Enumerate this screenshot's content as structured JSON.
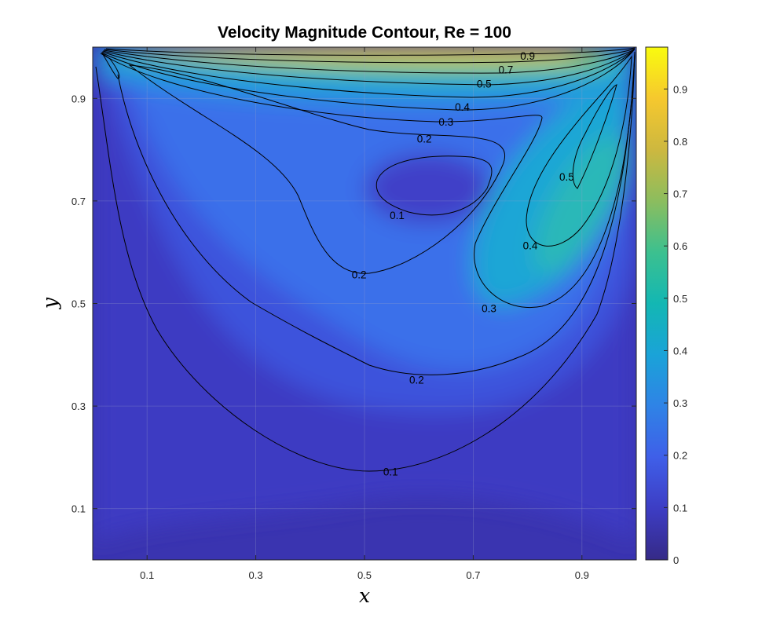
{
  "chart_data": {
    "type": "heatmap",
    "title": "Velocity Magnitude Contour, Re = 100",
    "xlabel": "x",
    "ylabel": "y",
    "xlim": [
      0,
      1
    ],
    "ylim": [
      0,
      1
    ],
    "xticks": [
      "0.1",
      "0.3",
      "0.5",
      "0.7",
      "0.9"
    ],
    "yticks": [
      "0.1",
      "0.3",
      "0.5",
      "0.7",
      "0.9"
    ],
    "grid": true,
    "colormap": "parula",
    "colorbar": {
      "range": [
        0,
        0.98
      ],
      "ticks": [
        "0",
        "0.1",
        "0.2",
        "0.3",
        "0.4",
        "0.5",
        "0.6",
        "0.7",
        "0.8",
        "0.9"
      ]
    },
    "contour_labels": [
      {
        "text": "0.9",
        "x": 0.8,
        "y": 0.982
      },
      {
        "text": "0.7",
        "x": 0.76,
        "y": 0.955
      },
      {
        "text": "0.5",
        "x": 0.72,
        "y": 0.927
      },
      {
        "text": "0.4",
        "x": 0.68,
        "y": 0.882
      },
      {
        "text": "0.3",
        "x": 0.65,
        "y": 0.853
      },
      {
        "text": "0.2",
        "x": 0.61,
        "y": 0.82
      },
      {
        "text": "0.1",
        "x": 0.56,
        "y": 0.671
      },
      {
        "text": "0.2",
        "x": 0.49,
        "y": 0.555
      },
      {
        "text": "0.5",
        "x": 0.872,
        "y": 0.746
      },
      {
        "text": "0.4",
        "x": 0.805,
        "y": 0.612
      },
      {
        "text": "0.3",
        "x": 0.729,
        "y": 0.489
      },
      {
        "text": "0.2",
        "x": 0.596,
        "y": 0.35
      },
      {
        "text": "0.1",
        "x": 0.548,
        "y": 0.171
      }
    ]
  }
}
